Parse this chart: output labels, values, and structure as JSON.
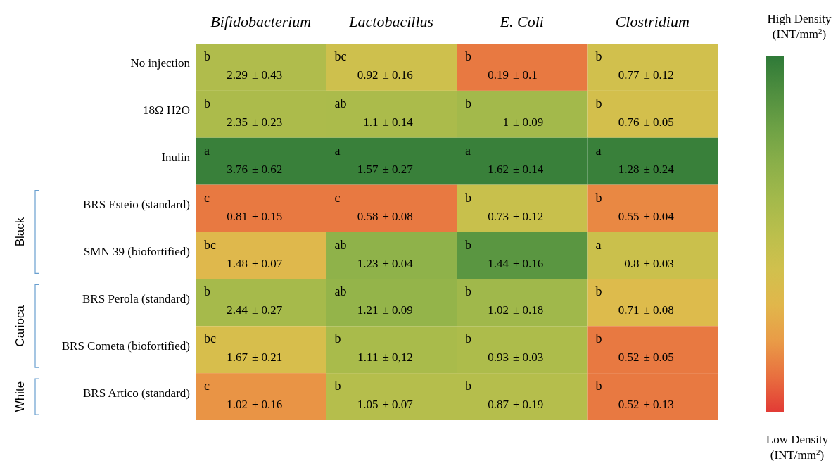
{
  "chart_data": {
    "type": "heatmap",
    "categories": [
      "Bifidobacterium",
      "Lactobacillus",
      "E. Coli",
      "Clostridium"
    ],
    "y_categories": [
      "No injection",
      "18Ω H2O",
      "Inulin",
      "BRS Esteio (standard)",
      "SMN 39 (biofortified)",
      "BRS Perola (standard)",
      "BRS Cometa (biofortified)",
      "BRS Artico (standard)"
    ],
    "cells": [
      [
        2.29,
        0.92,
        0.19,
        0.77
      ],
      [
        2.35,
        1.1,
        1,
        0.76
      ],
      [
        3.76,
        1.57,
        1.62,
        1.28
      ],
      [
        0.81,
        0.58,
        0.73,
        0.55
      ],
      [
        1.48,
        1.23,
        1.44,
        0.8
      ],
      [
        2.44,
        1.21,
        1.02,
        0.71
      ],
      [
        1.67,
        1.11,
        0.93,
        0.52
      ],
      [
        1.02,
        1.05,
        0.87,
        0.52
      ]
    ],
    "data_labels": true,
    "annotations": [
      "High Density (INT/mm$^{2}$)",
      "Low Density (INT/mm$^{2}$)",
      "Black",
      "Carioca",
      "White",
      "b",
      "± 0.43",
      "bc",
      "± 0.16",
      "b",
      "± 0.1",
      "b",
      "± 0.12",
      "b",
      "± 0.23",
      "ab",
      "± 0.14",
      "b",
      "± 0.09",
      "b",
      "± 0.05",
      "a",
      "± 0.62",
      "a",
      "± 0.27",
      "a",
      "± 0.14",
      "a",
      "± 0.24",
      "c",
      "± 0.15",
      "c",
      "± 0.08",
      "b",
      "± 0.12",
      "b",
      "± 0.04",
      "bc",
      "± 0.07",
      "ab",
      "± 0.04",
      "b",
      "± 0.16",
      "a",
      "± 0.03",
      "b",
      "± 0.27",
      "ab",
      "± 0.09",
      "b",
      "± 0.18",
      "b",
      "± 0.08",
      "bc",
      "± 0.21",
      "b",
      "± 0,12",
      "b",
      "± 0.03",
      "b",
      "± 0.05",
      "c",
      "± 0.16",
      "b",
      "± 0.07",
      "b",
      "± 0.19",
      "b",
      "± 0.13"
    ]
  }
}
